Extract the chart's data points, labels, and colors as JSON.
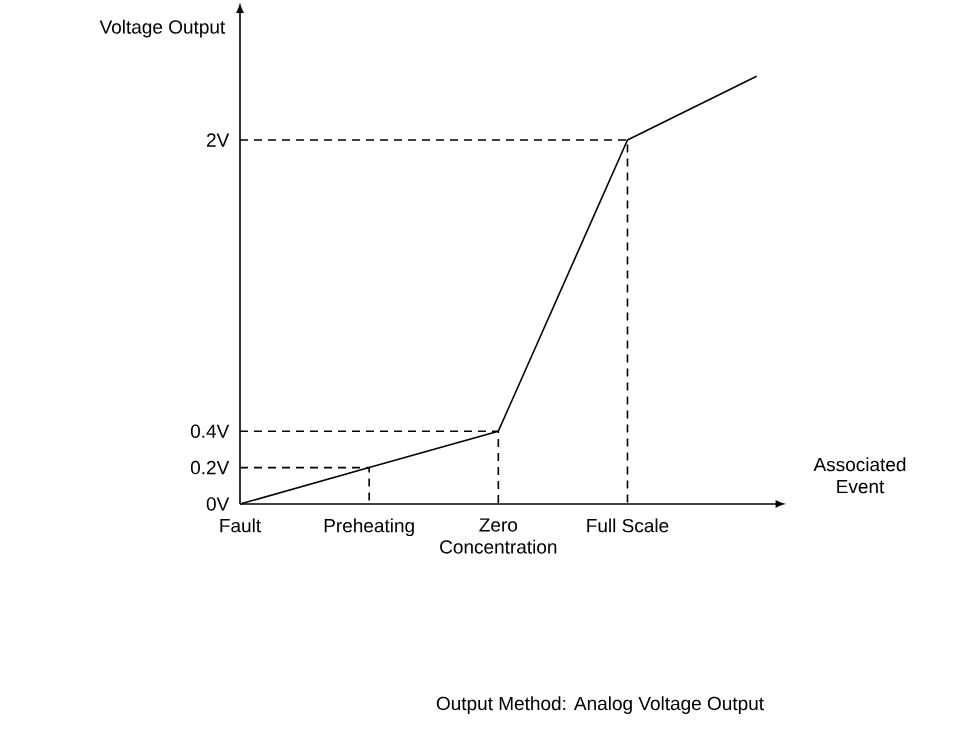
{
  "chart_data": {
    "type": "line",
    "xlabel": "Associated Event",
    "ylabel": "Voltage Output",
    "annotations": [
      "Output Method: Analog Voltage Output"
    ],
    "ylim": [
      0,
      2.7
    ],
    "categories": [
      "Fault",
      "Preheating",
      "Zero Concentration",
      "Full Scale",
      null
    ],
    "yticks": [
      {
        "value": 0,
        "label": "0V"
      },
      {
        "value": 0.2,
        "label": "0.2V"
      },
      {
        "value": 0.4,
        "label": "0.4V"
      },
      {
        "value": 2,
        "label": "2V"
      }
    ],
    "marker": "none",
    "series": [
      {
        "color": "#000000",
        "values": [
          0,
          0.2,
          0.4,
          2,
          2.35
        ]
      },
      {
        "color": "#000000",
        "line_style": "dashed",
        "x": [
          "Fault",
          "Preheating",
          "Preheating"
        ],
        "values": [
          0.2,
          0.2,
          0
        ]
      },
      {
        "color": "#000000",
        "line_style": "dashed",
        "x": [
          "Fault",
          "Zero Concentration",
          "Zero Concentration"
        ],
        "values": [
          0.4,
          0.4,
          0
        ]
      },
      {
        "color": "#000000",
        "line_style": "dashed",
        "x": [
          "Fault",
          "Full Scale",
          "Full Scale"
        ],
        "values": [
          2,
          2,
          0
        ]
      }
    ]
  }
}
